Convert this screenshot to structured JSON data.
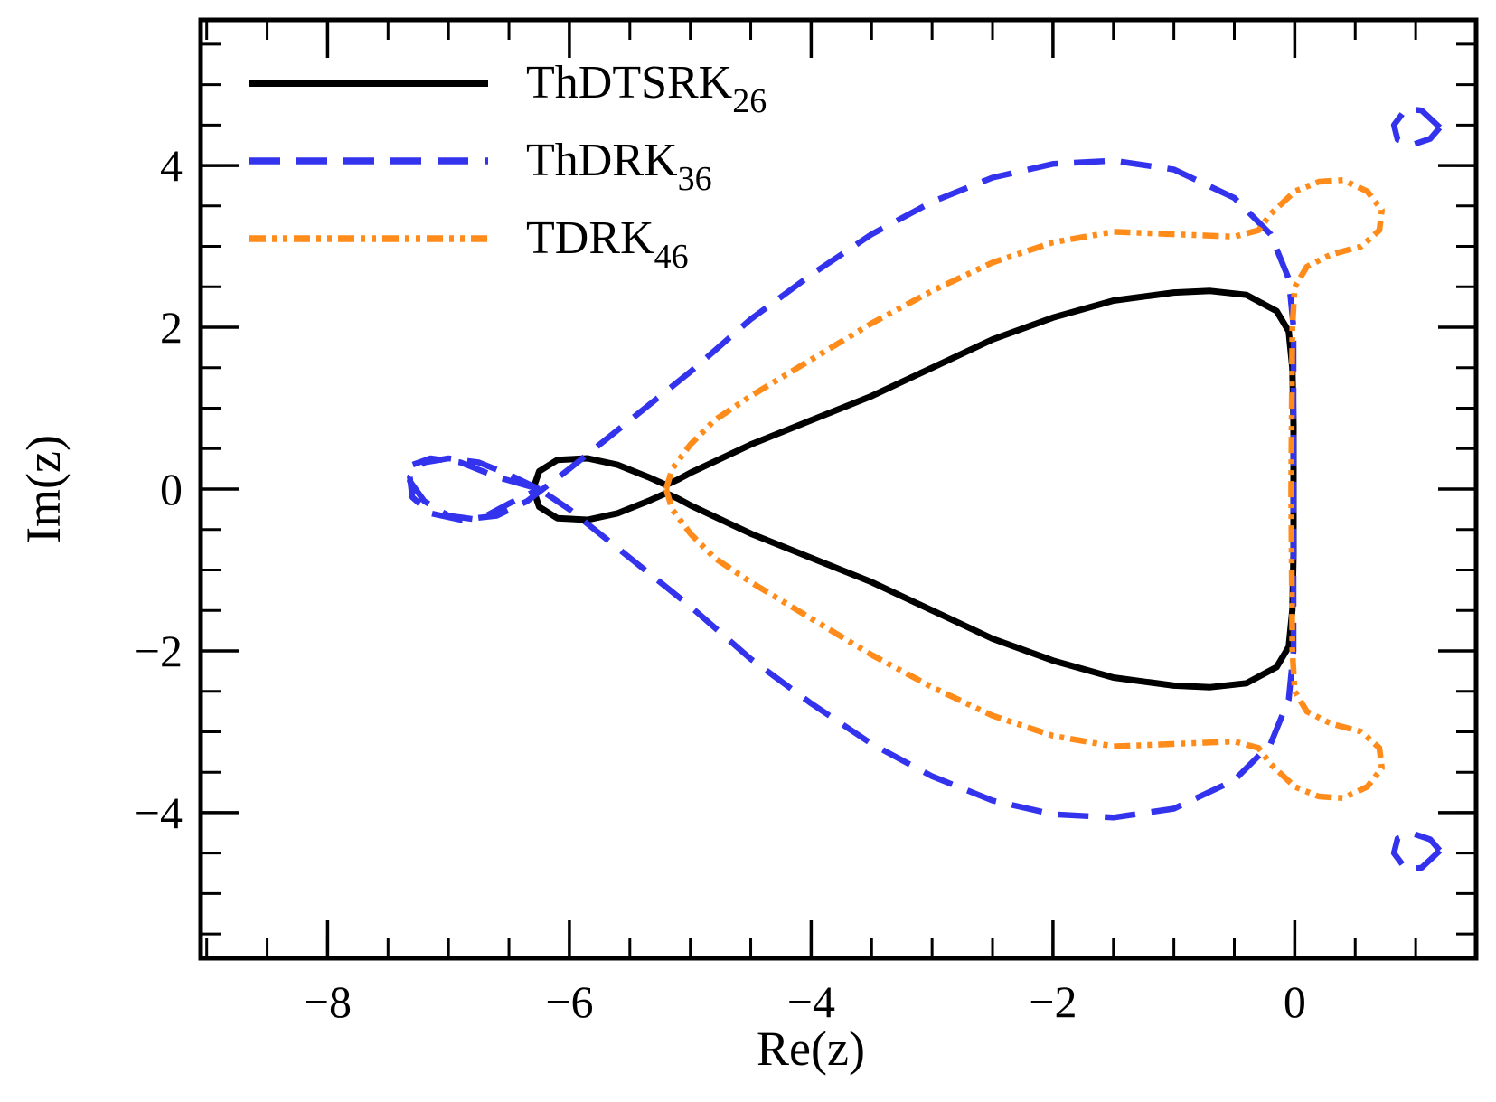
{
  "chart_data": {
    "type": "line",
    "title": "",
    "xlabel": "Re(z)",
    "ylabel": "Im(z)",
    "xlim": [
      -9.05,
      1.5
    ],
    "ylim": [
      -5.8,
      5.8
    ],
    "x_ticks": [
      -8,
      -6,
      -4,
      -2,
      0
    ],
    "x_tick_labels": [
      "−8",
      "−6",
      "−4",
      "−2",
      "0"
    ],
    "y_ticks": [
      -4,
      -2,
      0,
      2,
      4
    ],
    "y_tick_labels": [
      "−4",
      "−2",
      "0",
      "2",
      "4"
    ],
    "x_minor_step": 0.5,
    "y_minor_step": 0.5,
    "grid": false,
    "legend_position": "top-left",
    "series": [
      {
        "name": "ThDTSRK26",
        "label_main": "ThDTSRK",
        "label_sub": "26",
        "color": "#000000",
        "style": "solid",
        "x": [
          -6.3,
          -6.25,
          -6.1,
          -5.85,
          -5.6,
          -5.35,
          -5.2,
          -5.1,
          -5.0,
          -4.5,
          -4.0,
          -3.5,
          -3.0,
          -2.5,
          -2.0,
          -1.5,
          -1.0,
          -0.7,
          -0.4,
          -0.15,
          -0.05,
          -0.02,
          -0.01,
          -0.01,
          -0.01,
          -0.02,
          -0.05,
          -0.15,
          -0.4,
          -0.7,
          -1.0,
          -1.5,
          -2.0,
          -2.5,
          -3.0,
          -3.5,
          -4.0,
          -4.5,
          -5.0,
          -5.1,
          -5.2,
          -5.35,
          -5.6,
          -5.85,
          -6.1,
          -6.25,
          -6.3
        ],
        "y": [
          0.0,
          0.22,
          0.36,
          0.38,
          0.3,
          0.15,
          0.05,
          0.12,
          0.2,
          0.55,
          0.85,
          1.15,
          1.5,
          1.85,
          2.12,
          2.33,
          2.43,
          2.45,
          2.4,
          2.2,
          1.95,
          1.5,
          0.8,
          0.0,
          -0.8,
          -1.5,
          -1.95,
          -2.2,
          -2.4,
          -2.45,
          -2.43,
          -2.33,
          -2.12,
          -1.85,
          -1.5,
          -1.15,
          -0.85,
          -0.55,
          -0.2,
          -0.12,
          -0.05,
          -0.15,
          -0.3,
          -0.38,
          -0.36,
          -0.22,
          0.0
        ]
      },
      {
        "name": "ThDRK36",
        "label_main": "ThDRK",
        "label_sub": "36",
        "color": "#3333ee",
        "style": "dashed",
        "x": [
          -6.25,
          -6.5,
          -6.75,
          -7.0,
          -7.2,
          -7.32,
          -7.3,
          -7.15,
          -6.9,
          -6.6,
          -6.35,
          -6.0,
          -5.5,
          -5.0,
          -4.5,
          -4.0,
          -3.5,
          -3.0,
          -2.5,
          -2.0,
          -1.5,
          -1.0,
          -0.5,
          -0.2,
          -0.05,
          -0.01,
          -0.01,
          -0.01,
          -0.05,
          -0.2,
          -0.5,
          -1.0,
          -1.5,
          -2.0,
          -2.5,
          -3.0,
          -3.5,
          -4.0,
          -4.5,
          -5.0,
          -5.5,
          -6.0,
          -6.25,
          -6.6,
          -6.9,
          -7.15,
          -7.3,
          -7.32,
          -7.2,
          -7.0,
          -6.75,
          -6.5,
          -6.25
        ],
        "y": [
          0.0,
          0.18,
          0.33,
          0.38,
          0.33,
          0.15,
          -0.1,
          -0.3,
          -0.38,
          -0.33,
          -0.15,
          0.25,
          0.85,
          1.45,
          2.1,
          2.65,
          3.15,
          3.55,
          3.85,
          4.02,
          4.06,
          3.95,
          3.6,
          3.15,
          2.6,
          2.0,
          0.0,
          -2.0,
          -2.6,
          -3.15,
          -3.6,
          -3.95,
          -4.06,
          -4.02,
          -3.85,
          -3.55,
          -3.15,
          -2.65,
          -2.1,
          -1.45,
          -0.85,
          -0.25,
          0.0,
          0.15,
          0.33,
          0.38,
          0.3,
          0.1,
          -0.15,
          -0.33,
          -0.38,
          -0.18,
          0.0
        ]
      },
      {
        "name": "ThDRK36 island upper",
        "label_main": "",
        "label_sub": "",
        "legend": false,
        "color": "#3333ee",
        "style": "dashed",
        "x": [
          1.2,
          1.05,
          0.92,
          0.82,
          0.85,
          0.98,
          1.12,
          1.2
        ],
        "y": [
          4.47,
          4.68,
          4.7,
          4.5,
          4.32,
          4.26,
          4.33,
          4.47
        ]
      },
      {
        "name": "ThDRK36 island lower",
        "label_main": "",
        "label_sub": "",
        "legend": false,
        "color": "#3333ee",
        "style": "dashed",
        "x": [
          1.2,
          1.05,
          0.92,
          0.82,
          0.85,
          0.98,
          1.12,
          1.2
        ],
        "y": [
          -4.47,
          -4.68,
          -4.7,
          -4.5,
          -4.32,
          -4.26,
          -4.33,
          -4.47
        ]
      },
      {
        "name": "TDRK46",
        "label_main": "TDRK",
        "label_sub": "46",
        "color": "#ff8c1a",
        "style": "dashdotdot",
        "x": [
          -5.2,
          -5.15,
          -5.0,
          -4.8,
          -4.5,
          -4.0,
          -3.5,
          -3.0,
          -2.5,
          -2.0,
          -1.5,
          -1.0,
          -0.5,
          -0.3,
          -0.2,
          0.0,
          0.2,
          0.4,
          0.6,
          0.72,
          0.7,
          0.55,
          0.3,
          0.1,
          0.0,
          -0.02,
          -0.03,
          -0.02,
          0.0,
          0.1,
          0.3,
          0.55,
          0.7,
          0.72,
          0.6,
          0.4,
          0.2,
          0.0,
          -0.2,
          -0.3,
          -0.5,
          -1.0,
          -1.5,
          -2.0,
          -2.5,
          -3.0,
          -3.5,
          -4.0,
          -4.5,
          -4.8,
          -5.0,
          -5.15,
          -5.2
        ],
        "y": [
          0.0,
          0.25,
          0.55,
          0.85,
          1.15,
          1.6,
          2.05,
          2.45,
          2.8,
          3.05,
          3.18,
          3.15,
          3.12,
          3.2,
          3.4,
          3.68,
          3.8,
          3.82,
          3.68,
          3.45,
          3.2,
          3.0,
          2.9,
          2.75,
          2.5,
          2.0,
          0.0,
          -2.0,
          -2.5,
          -2.75,
          -2.9,
          -3.0,
          -3.2,
          -3.45,
          -3.68,
          -3.82,
          -3.8,
          -3.68,
          -3.4,
          -3.2,
          -3.12,
          -3.15,
          -3.18,
          -3.05,
          -2.8,
          -2.45,
          -2.05,
          -1.6,
          -1.15,
          -0.85,
          -0.55,
          -0.25,
          0.0
        ]
      }
    ]
  }
}
